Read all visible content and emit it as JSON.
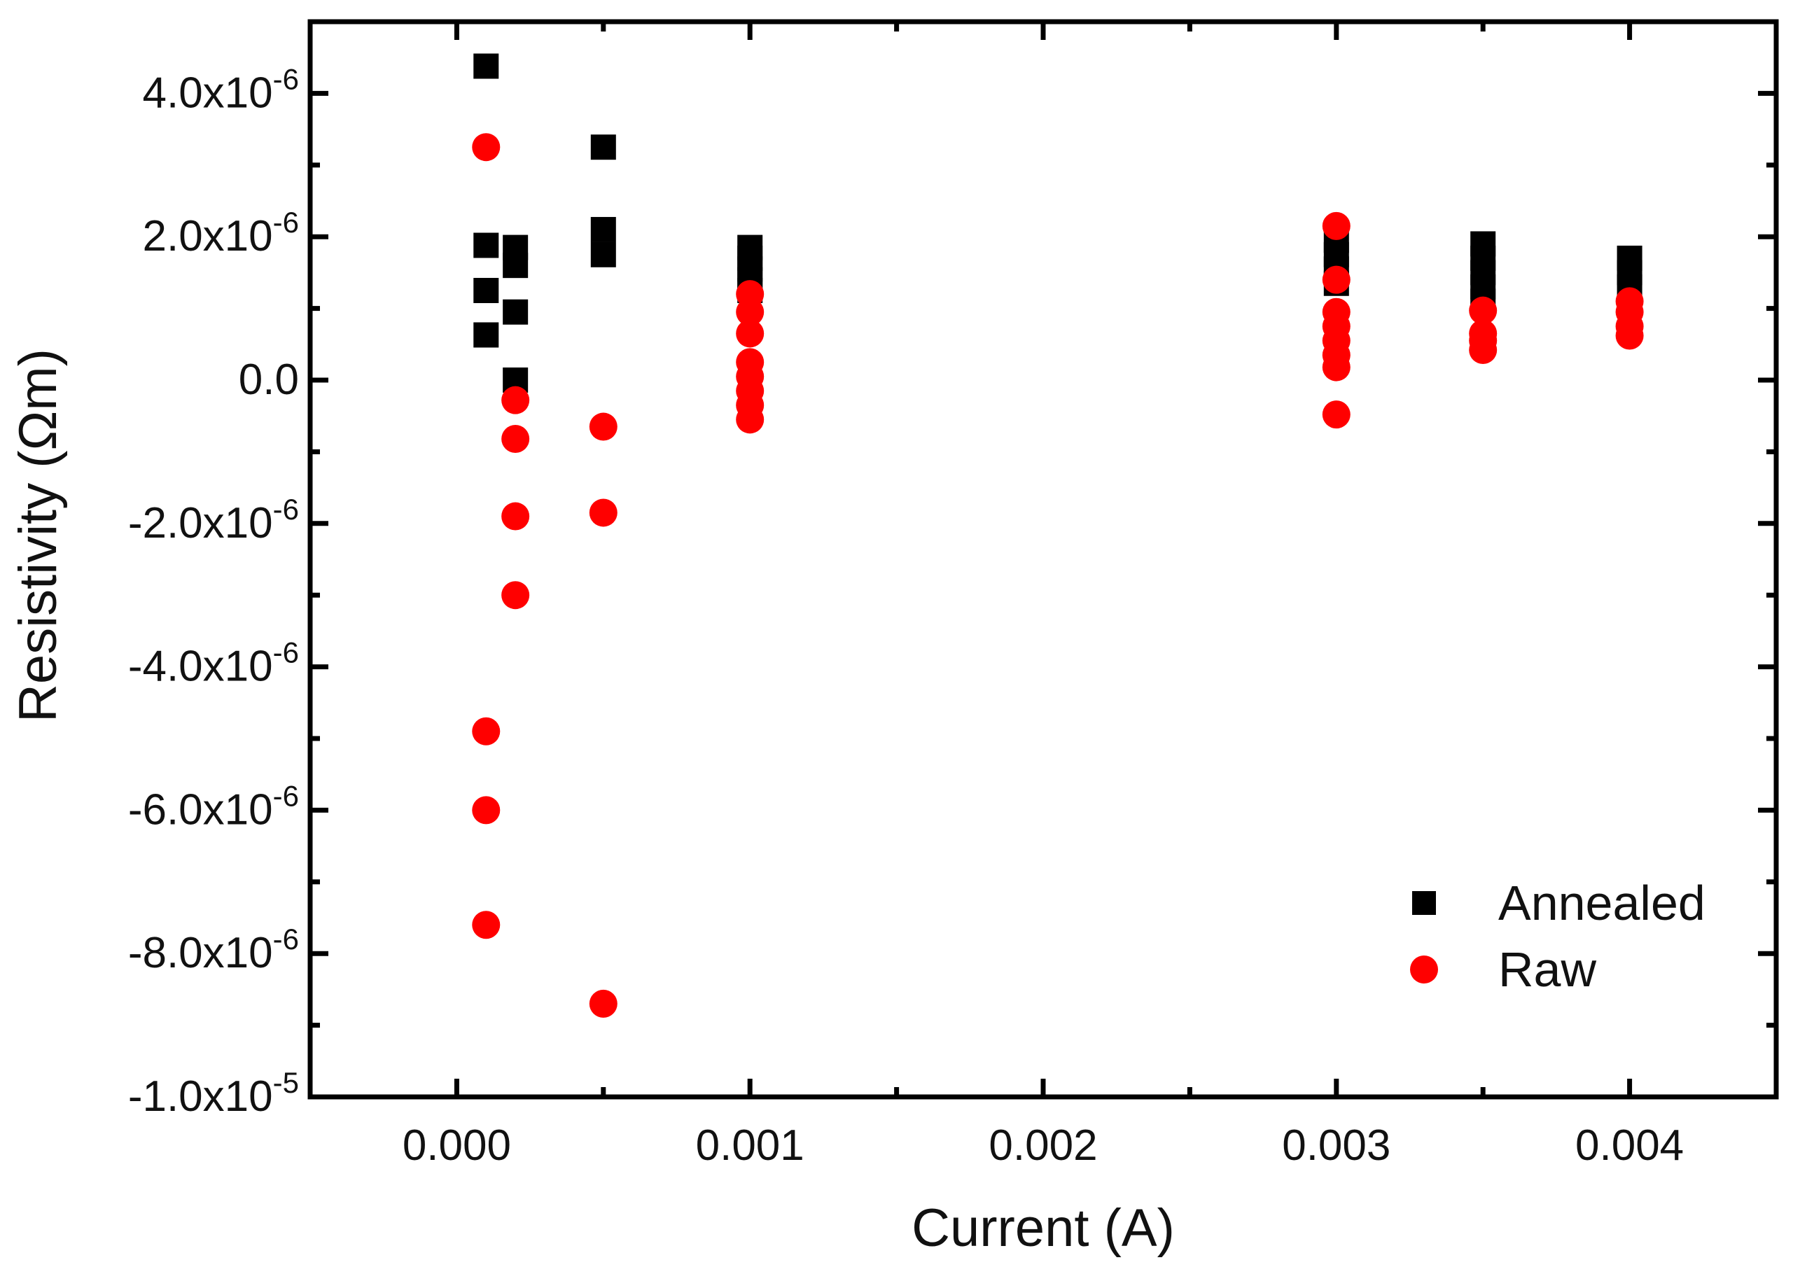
{
  "chart_data": {
    "type": "scatter",
    "xlabel": "Current (A)",
    "ylabel": "Resistivity (Ωm)",
    "xlim": [
      -0.0005,
      0.0045
    ],
    "ylim": [
      -1e-05,
      5e-06
    ],
    "x_ticks": [
      {
        "value": 0.0,
        "label": "0.000"
      },
      {
        "value": 0.001,
        "label": "0.001"
      },
      {
        "value": 0.002,
        "label": "0.002"
      },
      {
        "value": 0.003,
        "label": "0.003"
      },
      {
        "value": 0.004,
        "label": "0.004"
      }
    ],
    "y_ticks": [
      {
        "value": 4e-06,
        "mantissa": "4.0x10",
        "exp": "-6"
      },
      {
        "value": 2e-06,
        "mantissa": "2.0x10",
        "exp": "-6"
      },
      {
        "value": 0.0,
        "mantissa": "0.0",
        "exp": ""
      },
      {
        "value": -2e-06,
        "mantissa": "-2.0x10",
        "exp": "-6"
      },
      {
        "value": -4e-06,
        "mantissa": "-4.0x10",
        "exp": "-6"
      },
      {
        "value": -6e-06,
        "mantissa": "-6.0x10",
        "exp": "-6"
      },
      {
        "value": -8e-06,
        "mantissa": "-8.0x10",
        "exp": "-6"
      },
      {
        "value": -1e-05,
        "mantissa": "-1.0x10",
        "exp": "-5"
      }
    ],
    "legend": {
      "position": "bottom-right"
    },
    "series": [
      {
        "name": "Annealed",
        "marker": "square",
        "color": "#000000",
        "points": [
          [
            0.0001,
            4.38e-06
          ],
          [
            0.0001,
            1.88e-06
          ],
          [
            0.0001,
            1.25e-06
          ],
          [
            0.0001,
            6.3e-07
          ],
          [
            0.0002,
            1.85e-06
          ],
          [
            0.0002,
            1.6e-06
          ],
          [
            0.0002,
            9.5e-07
          ],
          [
            0.0002,
            0.0
          ],
          [
            0.0005,
            3.25e-06
          ],
          [
            0.0005,
            2.1e-06
          ],
          [
            0.0005,
            1.75e-06
          ],
          [
            0.001,
            1.85e-06
          ],
          [
            0.001,
            1.7e-06
          ],
          [
            0.001,
            1.55e-06
          ],
          [
            0.001,
            1.4e-06
          ],
          [
            0.001,
            1.25e-06
          ],
          [
            0.003,
            1.95e-06
          ],
          [
            0.003,
            1.75e-06
          ],
          [
            0.003,
            1.55e-06
          ],
          [
            0.003,
            1.35e-06
          ],
          [
            0.0035,
            1.9e-06
          ],
          [
            0.0035,
            1.7e-06
          ],
          [
            0.0035,
            1.5e-06
          ],
          [
            0.0035,
            1.3e-06
          ],
          [
            0.0035,
            1.1e-06
          ],
          [
            0.004,
            1.7e-06
          ],
          [
            0.004,
            1.5e-06
          ],
          [
            0.004,
            1.3e-06
          ]
        ]
      },
      {
        "name": "Raw",
        "marker": "circle",
        "color": "#ff0000",
        "points": [
          [
            0.0001,
            3.25e-06
          ],
          [
            0.0001,
            -4.9e-06
          ],
          [
            0.0001,
            -6e-06
          ],
          [
            0.0001,
            -7.6e-06
          ],
          [
            0.0002,
            -2.8e-07
          ],
          [
            0.0002,
            -8.2e-07
          ],
          [
            0.0002,
            -1.9e-06
          ],
          [
            0.0002,
            -3e-06
          ],
          [
            0.0005,
            -6.5e-07
          ],
          [
            0.0005,
            -1.85e-06
          ],
          [
            0.0005,
            -8.7e-06
          ],
          [
            0.001,
            1.2e-06
          ],
          [
            0.001,
            9.5e-07
          ],
          [
            0.001,
            6.5e-07
          ],
          [
            0.001,
            2.5e-07
          ],
          [
            0.001,
            5e-08
          ],
          [
            0.001,
            -1.5e-07
          ],
          [
            0.001,
            -3.5e-07
          ],
          [
            0.001,
            -5.5e-07
          ],
          [
            0.003,
            2.15e-06
          ],
          [
            0.003,
            1.4e-06
          ],
          [
            0.003,
            9.5e-07
          ],
          [
            0.003,
            7.5e-07
          ],
          [
            0.003,
            5.5e-07
          ],
          [
            0.003,
            3.5e-07
          ],
          [
            0.003,
            1.8e-07
          ],
          [
            0.003,
            -4.8e-07
          ],
          [
            0.0035,
            9.7e-07
          ],
          [
            0.0035,
            6.5e-07
          ],
          [
            0.0035,
            5.5e-07
          ],
          [
            0.0035,
            4.2e-07
          ],
          [
            0.004,
            1.1e-06
          ],
          [
            0.004,
            9.5e-07
          ],
          [
            0.004,
            7.5e-07
          ],
          [
            0.004,
            6.2e-07
          ]
        ]
      }
    ]
  }
}
